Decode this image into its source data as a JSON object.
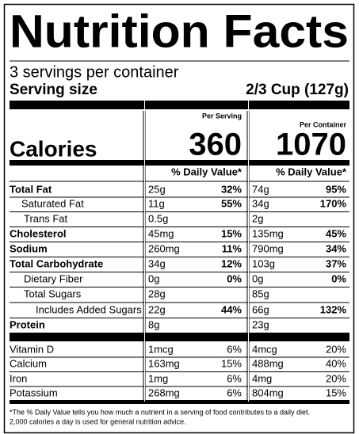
{
  "title": "Nutrition Facts",
  "servings": "3 servings per container",
  "serving_size": {
    "label": "Serving size",
    "value": "2/3 Cup (127g)"
  },
  "columns": {
    "per_serving": "Per Serving",
    "per_container": "Per Container"
  },
  "calories": {
    "label": "Calories",
    "per_serving": "360",
    "per_container": "1070"
  },
  "daily_value_header": {
    "per_serving": "% Daily Value*",
    "per_container": "% Daily Value*"
  },
  "nutrients": [
    {
      "name": "Total Fat",
      "serving_amount": "25g",
      "serving_dv": "32%",
      "container_amount": "74g",
      "container_dv": "95%"
    },
    {
      "name": "Saturated Fat",
      "serving_amount": "11g",
      "serving_dv": "55%",
      "container_amount": "34g",
      "container_dv": "170%"
    },
    {
      "name": "Trans Fat",
      "serving_amount": "0.5g",
      "container_amount": "2g"
    },
    {
      "name": "Cholesterol",
      "serving_amount": "45mg",
      "serving_dv": "15%",
      "container_amount": "135mg",
      "container_dv": "45%"
    },
    {
      "name": "Sodium",
      "serving_amount": "260mg",
      "serving_dv": "11%",
      "container_amount": "790mg",
      "container_dv": "34%"
    },
    {
      "name": "Total Carbohydrate",
      "serving_amount": "34g",
      "serving_dv": "12%",
      "container_amount": "103g",
      "container_dv": "37%"
    },
    {
      "name": "Dietary Fiber",
      "serving_amount": "0g",
      "serving_dv": "0%",
      "container_amount": "0g",
      "container_dv": "0%"
    },
    {
      "name": "Total Sugars",
      "serving_amount": "28g",
      "container_amount": "85g"
    },
    {
      "name": "Includes Added Sugars",
      "serving_amount": "22g",
      "serving_dv": "44%",
      "container_amount": "66g",
      "container_dv": "132%"
    },
    {
      "name": "Protein",
      "serving_amount": "8g",
      "container_amount": "23g"
    }
  ],
  "vitamins": [
    {
      "name": "Vitamin D",
      "serving_amount": "1mcg",
      "serving_dv": "6%",
      "container_amount": "4mcg",
      "container_dv": "20%"
    },
    {
      "name": "Calcium",
      "serving_amount": "163mg",
      "serving_dv": "15%",
      "container_amount": "488mg",
      "container_dv": "40%"
    },
    {
      "name": "Iron",
      "serving_amount": "1mg",
      "serving_dv": "6%",
      "container_amount": "4mg",
      "container_dv": "20%"
    },
    {
      "name": "Potassium",
      "serving_amount": "268mg",
      "serving_dv": "6%",
      "container_amount": "804mg",
      "container_dv": "15%"
    }
  ],
  "footnote": [
    "*The % Daily Value tells you how much a nutrient in a serving of food contributes to a daily diet.",
    "2,000 calories a day is used for general nutrition advice."
  ]
}
